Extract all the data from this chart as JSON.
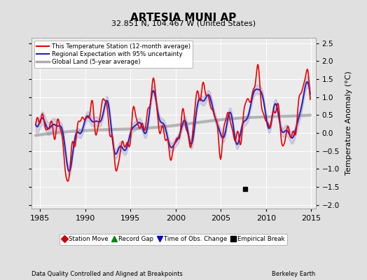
{
  "title": "ARTESIA MUNI AP",
  "subtitle": "32.851 N, 104.467 W (United States)",
  "xlabel_left": "Data Quality Controlled and Aligned at Breakpoints",
  "xlabel_right": "Berkeley Earth",
  "ylabel": "Temperature Anomaly (°C)",
  "xlim": [
    1984.0,
    2015.5
  ],
  "ylim": [
    -2.1,
    2.65
  ],
  "yticks": [
    -2,
    -1.5,
    -1,
    -0.5,
    0,
    0.5,
    1,
    1.5,
    2,
    2.5
  ],
  "xticks": [
    1985,
    1990,
    1995,
    2000,
    2005,
    2010,
    2015
  ],
  "bg_color": "#e0e0e0",
  "plot_bg_color": "#ebebeb",
  "grid_color": "#ffffff",
  "line_red": "#ee0000",
  "line_blue": "#2222bb",
  "band_blue": "#8888cc",
  "line_gray": "#aaaaaa",
  "legend_labels": [
    "This Temperature Station (12-month average)",
    "Regional Expectation with 95% uncertainty",
    "Global Land (5-year average)"
  ],
  "marker_labels": [
    "Station Move",
    "Record Gap",
    "Time of Obs. Change",
    "Empirical Break"
  ],
  "marker_colors": [
    "#cc0000",
    "#008800",
    "#0000cc",
    "#000000"
  ],
  "marker_shapes": [
    "D",
    "^",
    "v",
    "s"
  ],
  "empirical_break_x": 2007.7,
  "empirical_break_y": -1.55
}
